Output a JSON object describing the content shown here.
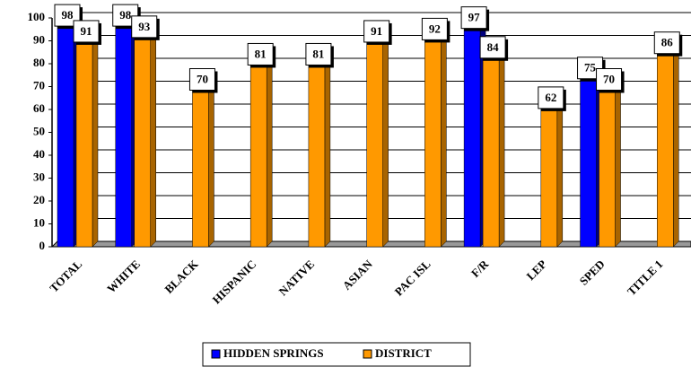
{
  "chart_data": {
    "type": "bar",
    "categories": [
      "TOTAL",
      "WHITE",
      "BLACK",
      "HISPANIC",
      "NATIVE",
      "ASIAN",
      "PAC ISL",
      "F/R",
      "LEP",
      "SPED",
      "TITLE 1"
    ],
    "series": [
      {
        "name": "HIDDEN SPRINGS",
        "color": "#0000ff",
        "values": [
          98,
          98,
          null,
          null,
          null,
          null,
          null,
          97,
          null,
          75,
          null
        ]
      },
      {
        "name": "DISTRICT",
        "color": "#ff9900",
        "values": [
          91,
          93,
          70,
          81,
          81,
          91,
          92,
          84,
          62,
          70,
          86
        ]
      }
    ],
    "ylim": [
      0,
      100
    ],
    "yticks": [
      0,
      10,
      20,
      30,
      40,
      50,
      60,
      70,
      80,
      90,
      100
    ],
    "grid": true
  }
}
